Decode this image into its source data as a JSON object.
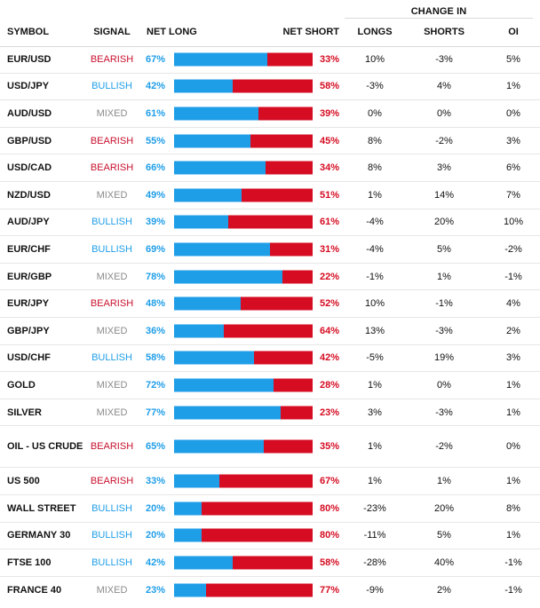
{
  "table": {
    "group_header": "CHANGE IN",
    "headers": {
      "symbol": "SYMBOL",
      "signal": "SIGNAL",
      "net_long": "NET LONG",
      "net_short": "NET SHORT",
      "longs": "LONGS",
      "shorts": "SHORTS",
      "oi": "OI"
    },
    "colors": {
      "long": "#1f9ee8",
      "short": "#d50c22",
      "mixed": "#8a8a8a"
    },
    "rows": [
      {
        "symbol": "EUR/USD",
        "signal": "BEARISH",
        "net_long": "67%",
        "net_long_value": 67,
        "net_short": "33%",
        "longs": "10%",
        "shorts": "-3%",
        "oi": "5%"
      },
      {
        "symbol": "USD/JPY",
        "signal": "BULLISH",
        "net_long": "42%",
        "net_long_value": 42,
        "net_short": "58%",
        "longs": "-3%",
        "shorts": "4%",
        "oi": "1%"
      },
      {
        "symbol": "AUD/USD",
        "signal": "MIXED",
        "net_long": "61%",
        "net_long_value": 61,
        "net_short": "39%",
        "longs": "0%",
        "shorts": "0%",
        "oi": "0%"
      },
      {
        "symbol": "GBP/USD",
        "signal": "BEARISH",
        "net_long": "55%",
        "net_long_value": 55,
        "net_short": "45%",
        "longs": "8%",
        "shorts": "-2%",
        "oi": "3%"
      },
      {
        "symbol": "USD/CAD",
        "signal": "BEARISH",
        "net_long": "66%",
        "net_long_value": 66,
        "net_short": "34%",
        "longs": "8%",
        "shorts": "3%",
        "oi": "6%"
      },
      {
        "symbol": "NZD/USD",
        "signal": "MIXED",
        "net_long": "49%",
        "net_long_value": 49,
        "net_short": "51%",
        "longs": "1%",
        "shorts": "14%",
        "oi": "7%"
      },
      {
        "symbol": "AUD/JPY",
        "signal": "BULLISH",
        "net_long": "39%",
        "net_long_value": 39,
        "net_short": "61%",
        "longs": "-4%",
        "shorts": "20%",
        "oi": "10%"
      },
      {
        "symbol": "EUR/CHF",
        "signal": "BULLISH",
        "net_long": "69%",
        "net_long_value": 69,
        "net_short": "31%",
        "longs": "-4%",
        "shorts": "5%",
        "oi": "-2%"
      },
      {
        "symbol": "EUR/GBP",
        "signal": "MIXED",
        "net_long": "78%",
        "net_long_value": 78,
        "net_short": "22%",
        "longs": "-1%",
        "shorts": "1%",
        "oi": "-1%"
      },
      {
        "symbol": "EUR/JPY",
        "signal": "BEARISH",
        "net_long": "48%",
        "net_long_value": 48,
        "net_short": "52%",
        "longs": "10%",
        "shorts": "-1%",
        "oi": "4%"
      },
      {
        "symbol": "GBP/JPY",
        "signal": "MIXED",
        "net_long": "36%",
        "net_long_value": 36,
        "net_short": "64%",
        "longs": "13%",
        "shorts": "-3%",
        "oi": "2%"
      },
      {
        "symbol": "USD/CHF",
        "signal": "BULLISH",
        "net_long": "58%",
        "net_long_value": 58,
        "net_short": "42%",
        "longs": "-5%",
        "shorts": "19%",
        "oi": "3%"
      },
      {
        "symbol": "GOLD",
        "signal": "MIXED",
        "net_long": "72%",
        "net_long_value": 72,
        "net_short": "28%",
        "longs": "1%",
        "shorts": "0%",
        "oi": "1%"
      },
      {
        "symbol": "SILVER",
        "signal": "MIXED",
        "net_long": "77%",
        "net_long_value": 77,
        "net_short": "23%",
        "longs": "3%",
        "shorts": "-3%",
        "oi": "1%"
      },
      {
        "symbol": "OIL - US CRUDE",
        "signal": "BEARISH",
        "net_long": "65%",
        "net_long_value": 65,
        "net_short": "35%",
        "longs": "1%",
        "shorts": "-2%",
        "oi": "0%"
      },
      {
        "symbol": "US 500",
        "signal": "BEARISH",
        "net_long": "33%",
        "net_long_value": 33,
        "net_short": "67%",
        "longs": "1%",
        "shorts": "1%",
        "oi": "1%"
      },
      {
        "symbol": "WALL STREET",
        "signal": "BULLISH",
        "net_long": "20%",
        "net_long_value": 20,
        "net_short": "80%",
        "longs": "-23%",
        "shorts": "20%",
        "oi": "8%"
      },
      {
        "symbol": "GERMANY 30",
        "signal": "BULLISH",
        "net_long": "20%",
        "net_long_value": 20,
        "net_short": "80%",
        "longs": "-11%",
        "shorts": "5%",
        "oi": "1%"
      },
      {
        "symbol": "FTSE 100",
        "signal": "BULLISH",
        "net_long": "42%",
        "net_long_value": 42,
        "net_short": "58%",
        "longs": "-28%",
        "shorts": "40%",
        "oi": "-1%"
      },
      {
        "symbol": "FRANCE 40",
        "signal": "MIXED",
        "net_long": "23%",
        "net_long_value": 23,
        "net_short": "77%",
        "longs": "-9%",
        "shorts": "2%",
        "oi": "-1%"
      }
    ]
  }
}
